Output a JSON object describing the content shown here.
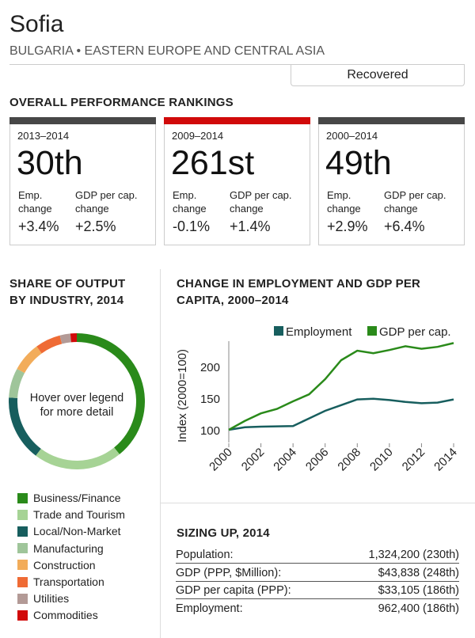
{
  "header": {
    "city": "Sofia",
    "region": "BULGARIA • EASTERN EUROPE AND CENTRAL ASIA",
    "status": "Recovered"
  },
  "rankings": {
    "title": "OVERALL PERFORMANCE RANKINGS",
    "cards": [
      {
        "period": "2013–2014",
        "rank": "30th",
        "emp_label": "Emp. change",
        "gdp_label": "GDP per cap. change",
        "emp": "+3.4%",
        "gdp": "+2.5%",
        "bar_color": "#474747"
      },
      {
        "period": "2009–2014",
        "rank": "261st",
        "emp_label": "Emp. change",
        "gdp_label": "GDP per cap. change",
        "emp": "-0.1%",
        "gdp": "+1.4%",
        "bar_color": "#d10a0a"
      },
      {
        "period": "2000–2014",
        "rank": "49th",
        "emp_label": "Emp. change",
        "gdp_label": "GDP per cap. change",
        "emp": "+2.9%",
        "gdp": "+6.4%",
        "bar_color": "#474747"
      }
    ]
  },
  "share": {
    "title_line1": "SHARE OF OUTPUT",
    "title_line2": "BY INDUSTRY, 2014",
    "center_line1": "Hover over legend",
    "center_line2": "for more detail"
  },
  "chart_data": [
    {
      "type": "pie",
      "title": "SHARE OF OUTPUT BY INDUSTRY, 2014",
      "categories": [
        "Business/Finance",
        "Trade and Tourism",
        "Local/Non-Market",
        "Manufacturing",
        "Construction",
        "Transportation",
        "Utilities",
        "Commodities"
      ],
      "values": [
        39,
        21,
        15.5,
        7,
        7,
        6,
        2.5,
        1.5
      ],
      "colors": [
        "#2a8a1a",
        "#a6d395",
        "#175e5e",
        "#9fc59a",
        "#f2ac5a",
        "#ef6b35",
        "#b39a96",
        "#d10a0a"
      ]
    },
    {
      "type": "line",
      "title": "CHANGE IN EMPLOYMENT AND GDP PER CAPITA, 2000–2014",
      "ylabel": "Index (2000=100)",
      "x": [
        2000,
        2001,
        2002,
        2003,
        2004,
        2005,
        2006,
        2007,
        2008,
        2009,
        2010,
        2011,
        2012,
        2013,
        2014
      ],
      "xticks": [
        "2000",
        "2002",
        "2004",
        "2006",
        "2008",
        "2010",
        "2012",
        "2014"
      ],
      "yticks": [
        "100",
        "150",
        "200"
      ],
      "ylim": [
        80,
        240
      ],
      "legend": "top-right",
      "series": [
        {
          "name": "Employment",
          "color": "#175e5e",
          "values": [
            100,
            104,
            105,
            105.5,
            106,
            118,
            130,
            139,
            148,
            149,
            147,
            144,
            142,
            143,
            148
          ]
        },
        {
          "name": "GDP per cap.",
          "color": "#2a8a1a",
          "values": [
            100,
            114,
            126,
            133,
            145,
            156,
            180,
            210,
            225,
            221,
            226,
            232,
            228,
            231,
            237
          ]
        }
      ]
    }
  ],
  "change": {
    "title_line1": "CHANGE IN EMPLOYMENT AND GDP PER",
    "title_line2": "CAPITA, 2000–2014"
  },
  "sizing": {
    "title": "SIZING UP, 2014",
    "rows": [
      {
        "label": "Population:",
        "value": "1,324,200 (230th)"
      },
      {
        "label": "GDP (PPP, $Million):",
        "value": "$43,838 (248th)"
      },
      {
        "label": "GDP per capita (PPP):",
        "value": "$33,105 (186th)"
      },
      {
        "label": "Employment:",
        "value": "962,400 (186th)"
      }
    ]
  }
}
